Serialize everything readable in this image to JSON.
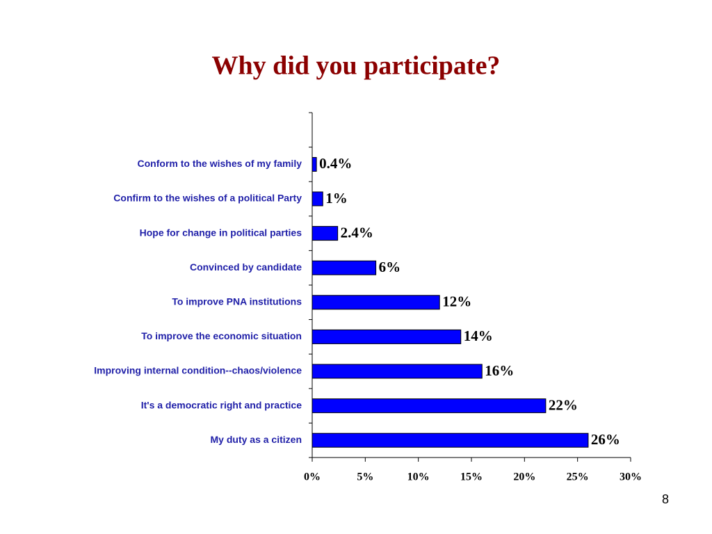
{
  "chart_data": {
    "type": "bar",
    "orientation": "horizontal",
    "title": "Why did you participate?",
    "categories": [
      null,
      "Conform to the wishes of my family",
      "Confirm to the wishes of a political Party",
      "Hope for change in political parties",
      "Convinced by candidate",
      "To improve PNA institutions",
      "To improve the economic situation",
      "Improving internal condition--chaos/violence",
      "It's a democratic right and practice",
      "My duty as a citizen"
    ],
    "values": [
      null,
      0.4,
      1,
      2.4,
      6,
      12,
      14,
      16,
      22,
      26
    ],
    "value_labels": [
      null,
      "0.4%",
      "1%",
      "2.4%",
      "6%",
      "12%",
      "14%",
      "16%",
      "22%",
      "26%"
    ],
    "color": "#0000ff",
    "xlim": [
      0,
      30
    ],
    "xticks": [
      {
        "value": 0,
        "label": "0%"
      },
      {
        "value": 5,
        "label": "5%"
      },
      {
        "value": 10,
        "label": "10%"
      },
      {
        "value": 15,
        "label": "15%"
      },
      {
        "value": 20,
        "label": "20%"
      },
      {
        "value": 25,
        "label": "25%"
      },
      {
        "value": 30,
        "label": "30%"
      }
    ],
    "grid": false
  },
  "slide_number": "8"
}
